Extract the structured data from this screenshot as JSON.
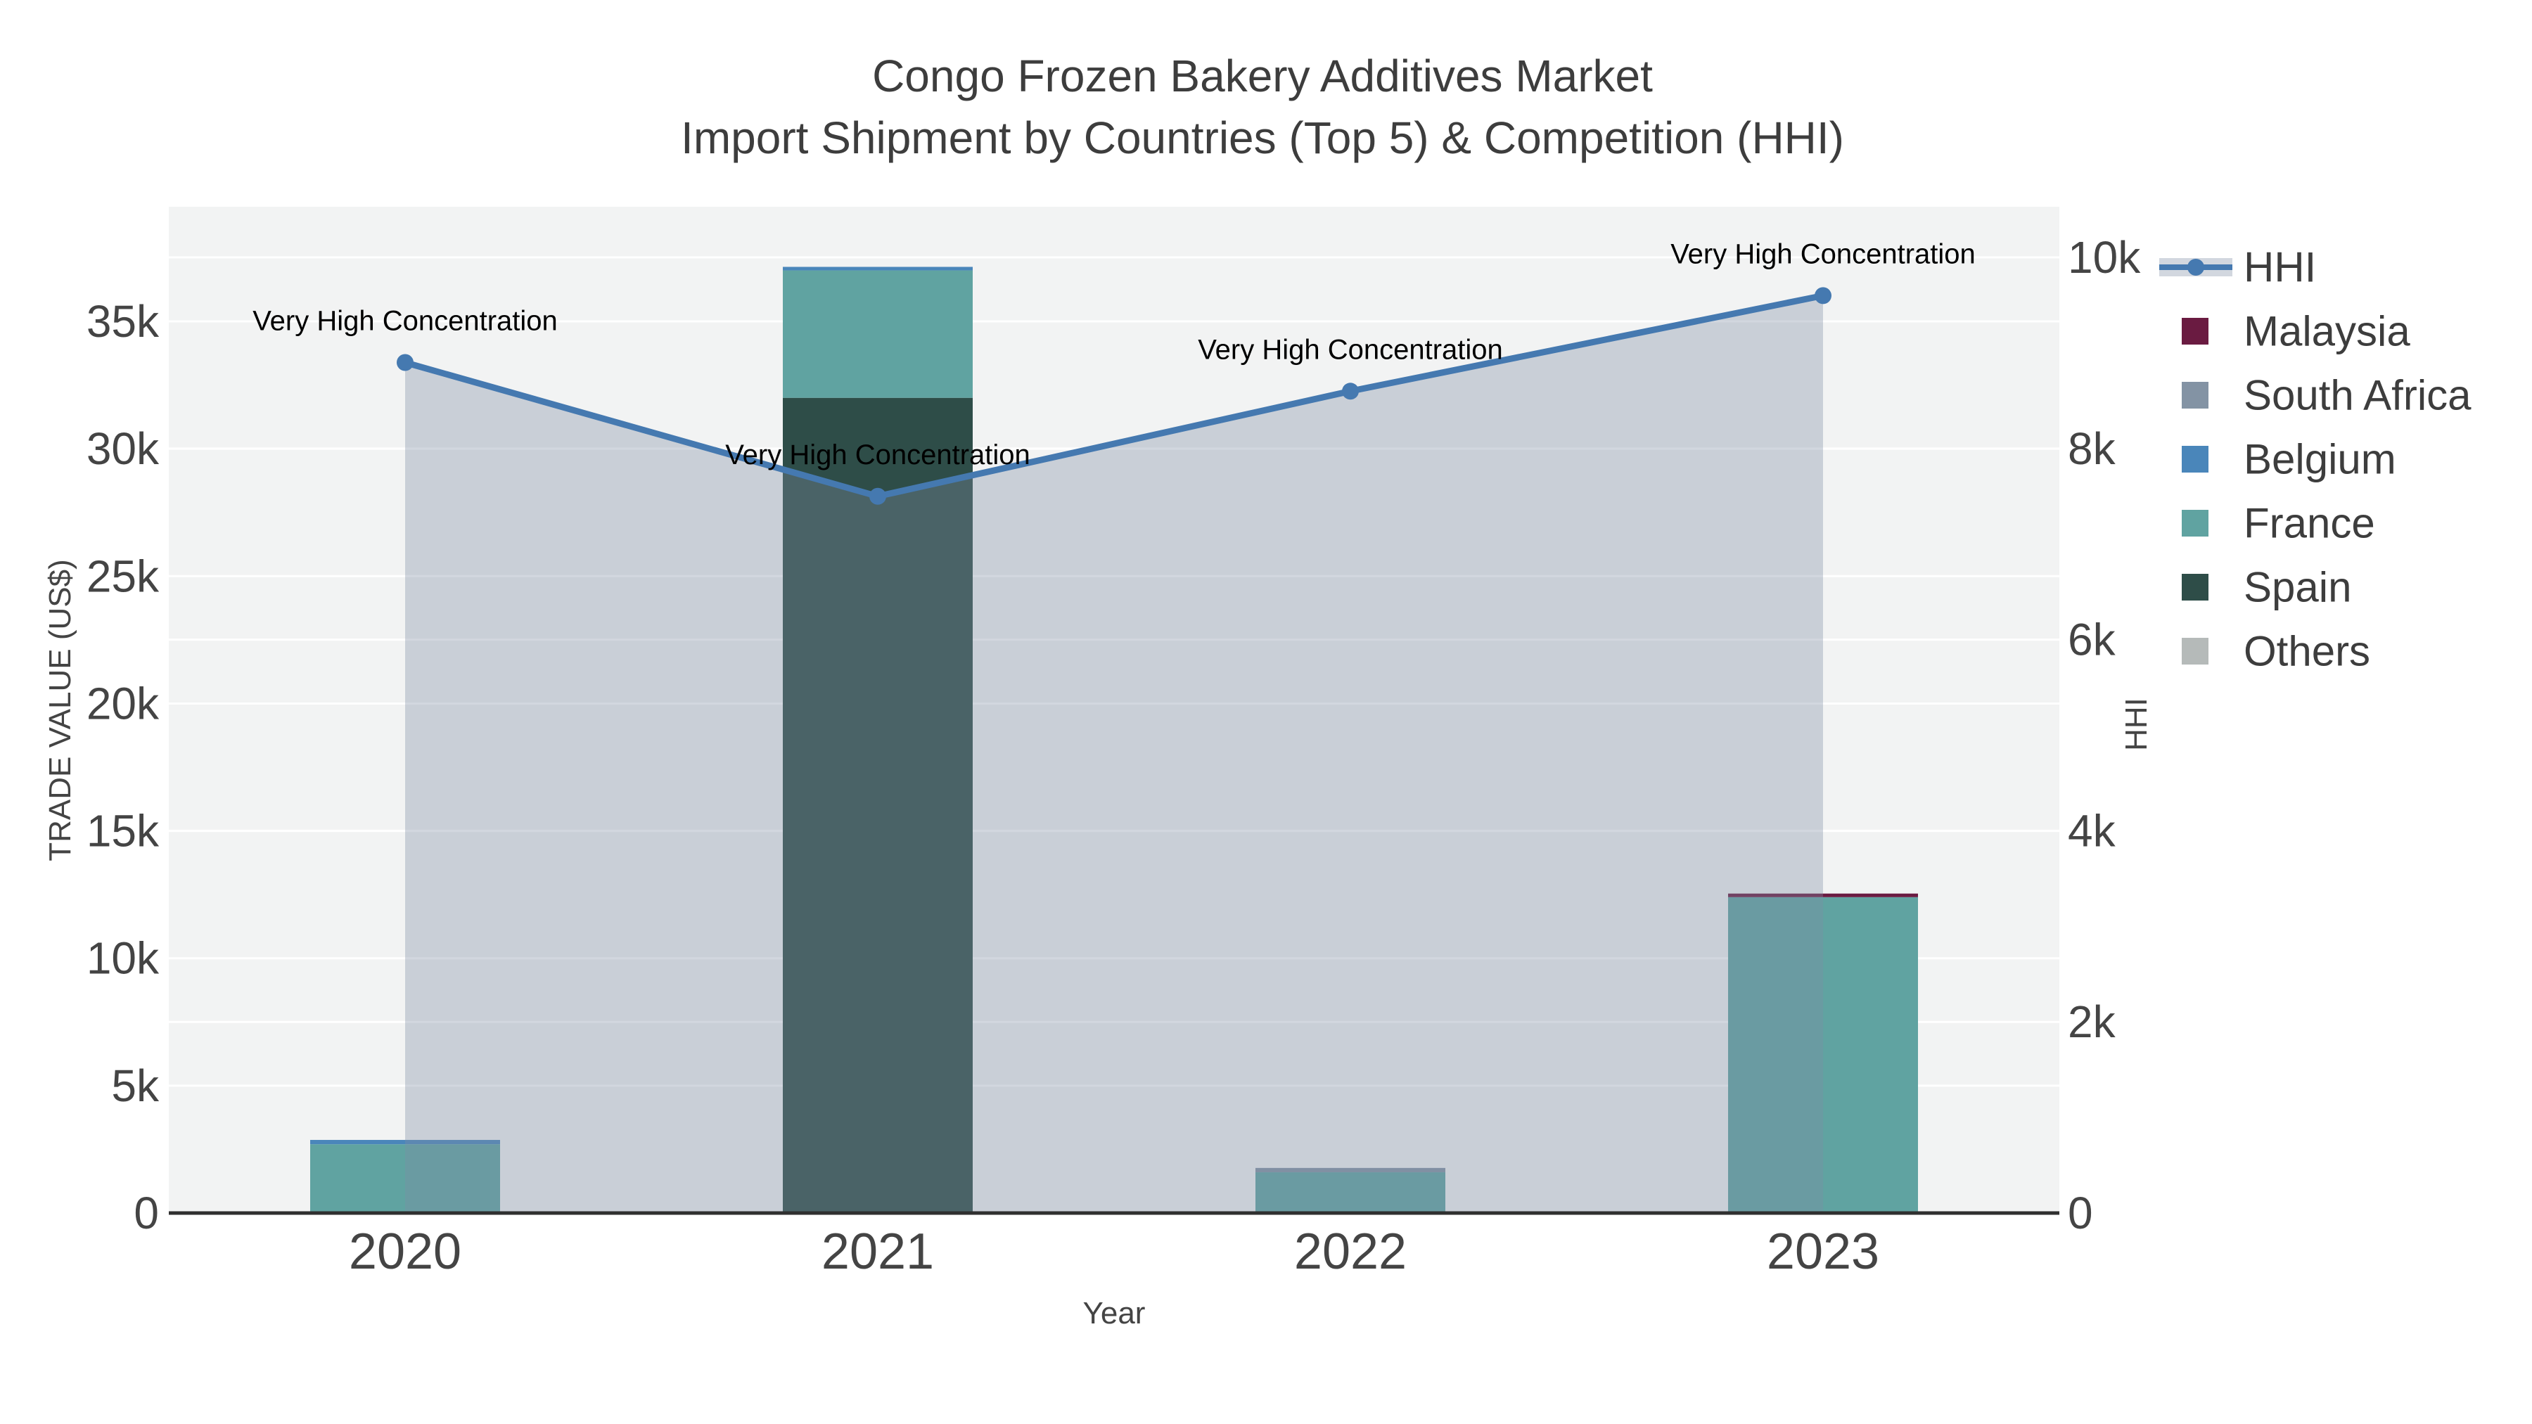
{
  "title": {
    "line1": "Congo Frozen Bakery Additives Market",
    "line2": "Import Shipment by Countries (Top 5) & Competition (HHI)"
  },
  "chart_data": {
    "type": "bar+line",
    "x_categories": [
      "2020",
      "2021",
      "2022",
      "2023"
    ],
    "xlabel": "Year",
    "y_left": {
      "title": "TRADE VALUE (US$)",
      "range": [
        0,
        39500
      ],
      "ticks": [
        {
          "v": 0,
          "label": "0"
        },
        {
          "v": 5000,
          "label": "5k"
        },
        {
          "v": 10000,
          "label": "10k"
        },
        {
          "v": 15000,
          "label": "15k"
        },
        {
          "v": 20000,
          "label": "20k"
        },
        {
          "v": 25000,
          "label": "25k"
        },
        {
          "v": 30000,
          "label": "30k"
        },
        {
          "v": 35000,
          "label": "35k"
        }
      ]
    },
    "y_right": {
      "title": "HHI",
      "range": [
        0,
        10530
      ],
      "ticks": [
        {
          "v": 0,
          "label": "0"
        },
        {
          "v": 2000,
          "label": "2k"
        },
        {
          "v": 4000,
          "label": "4k"
        },
        {
          "v": 6000,
          "label": "6k"
        },
        {
          "v": 8000,
          "label": "8k"
        },
        {
          "v": 10000,
          "label": "10k"
        }
      ]
    },
    "bar_series": [
      {
        "name": "Spain",
        "color": "#2e4d48",
        "values": [
          0,
          32000,
          0,
          0
        ]
      },
      {
        "name": "France",
        "color": "#60a3a1",
        "values": [
          2700,
          5000,
          1600,
          12400
        ]
      },
      {
        "name": "Belgium",
        "color": "#4a86ba",
        "values": [
          170,
          140,
          0,
          0
        ]
      },
      {
        "name": "South Africa",
        "color": "#8393a4",
        "values": [
          0,
          0,
          170,
          0
        ]
      },
      {
        "name": "Malaysia",
        "color": "#6a1b41",
        "values": [
          0,
          0,
          0,
          140
        ]
      },
      {
        "name": "Others",
        "color": "#b5bab9",
        "values": [
          0,
          0,
          0,
          0
        ]
      }
    ],
    "hhi_series": {
      "name": "HHI",
      "values": [
        8900,
        7500,
        8600,
        9600
      ],
      "line_color": "#4579b0",
      "marker_color": "#4579b0",
      "area_color": "rgba(125,139,162,0.35)"
    },
    "annotations": [
      {
        "x_index": 0,
        "text": "Very High Concentration"
      },
      {
        "x_index": 1,
        "text": "Very High Concentration"
      },
      {
        "x_index": 2,
        "text": "Very High Concentration"
      },
      {
        "x_index": 3,
        "text": "Very High Concentration"
      }
    ],
    "legend": [
      {
        "label": "HHI",
        "type": "line",
        "color": "#4579b0"
      },
      {
        "label": "Malaysia",
        "type": "swatch",
        "color": "#6a1b41"
      },
      {
        "label": "South Africa",
        "type": "swatch",
        "color": "#8393a4"
      },
      {
        "label": "Belgium",
        "type": "swatch",
        "color": "#4a86ba"
      },
      {
        "label": "France",
        "type": "swatch",
        "color": "#60a3a1"
      },
      {
        "label": "Spain",
        "type": "swatch",
        "color": "#2e4d48"
      },
      {
        "label": "Others",
        "type": "swatch",
        "color": "#b5bab9"
      }
    ],
    "colors": {
      "plot_bg": "#f2f3f3",
      "grid": "#ffffff",
      "axis_line": "#2f2f2f",
      "tick_text": "#444444",
      "title_text": "#3d3d3d",
      "annotation_text": "#000000",
      "legend_area_band": "#d2d7df"
    }
  }
}
